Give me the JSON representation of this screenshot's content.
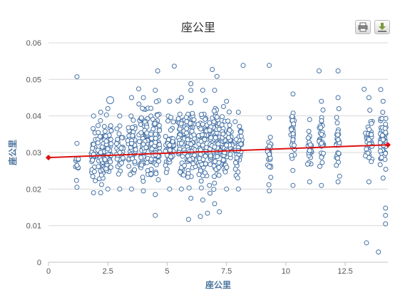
{
  "toolbar": {
    "print_icon": "printer-icon",
    "export_icon": "download-icon"
  },
  "colors": {
    "points": "#4572a7",
    "trend": "#dd1111",
    "grid": "#d8d8d8",
    "axis_label": "#4d759e",
    "text": "#333333"
  },
  "chart_data": {
    "type": "scatter",
    "title": "座公里",
    "xlabel": "座公里",
    "ylabel": "座公里",
    "xlim": [
      0,
      14.3
    ],
    "ylim": [
      0,
      0.06
    ],
    "xticks": [
      "0",
      "2.5",
      "5",
      "7.5",
      "10",
      "12.5"
    ],
    "xtick_values": [
      0,
      2.5,
      5,
      7.5,
      10,
      12.5
    ],
    "yticks": [
      "0",
      "0.01",
      "0.02",
      "0.03",
      "0.04",
      "0.05",
      "0.06"
    ],
    "ytick_values": [
      0,
      0.01,
      0.02,
      0.03,
      0.04,
      0.05,
      0.06
    ],
    "grid": true,
    "legend": "none",
    "clusters": [
      {
        "x": 1.2,
        "y_min": 0.0205,
        "y_max": 0.0325,
        "n": 10,
        "width": 0.12
      },
      {
        "x": 1.9,
        "y_min": 0.019,
        "y_max": 0.04,
        "n": 30,
        "width": 0.2
      },
      {
        "x": 2.2,
        "y_min": 0.019,
        "y_max": 0.041,
        "n": 40,
        "width": 0.25
      },
      {
        "x": 2.5,
        "y_min": 0.02,
        "y_max": 0.042,
        "n": 55,
        "width": 0.3
      },
      {
        "x": 3.0,
        "y_min": 0.02,
        "y_max": 0.04,
        "n": 40,
        "width": 0.3
      },
      {
        "x": 3.5,
        "y_min": 0.02,
        "y_max": 0.045,
        "n": 60,
        "width": 0.35
      },
      {
        "x": 4.0,
        "y_min": 0.0195,
        "y_max": 0.045,
        "n": 70,
        "width": 0.4
      },
      {
        "x": 4.5,
        "y_min": 0.0185,
        "y_max": 0.047,
        "n": 80,
        "width": 0.4
      },
      {
        "x": 5.1,
        "y_min": 0.02,
        "y_max": 0.044,
        "n": 50,
        "width": 0.35
      },
      {
        "x": 5.6,
        "y_min": 0.02,
        "y_max": 0.045,
        "n": 55,
        "width": 0.3
      },
      {
        "x": 6.0,
        "y_min": 0.0175,
        "y_max": 0.047,
        "n": 70,
        "width": 0.4
      },
      {
        "x": 6.5,
        "y_min": 0.017,
        "y_max": 0.047,
        "n": 75,
        "width": 0.4
      },
      {
        "x": 7.0,
        "y_min": 0.016,
        "y_max": 0.047,
        "n": 85,
        "width": 0.45
      },
      {
        "x": 7.5,
        "y_min": 0.02,
        "y_max": 0.044,
        "n": 70,
        "width": 0.4
      },
      {
        "x": 8.0,
        "y_min": 0.02,
        "y_max": 0.041,
        "n": 45,
        "width": 0.3
      },
      {
        "x": 9.3,
        "y_min": 0.0195,
        "y_max": 0.0395,
        "n": 25,
        "width": 0.15
      },
      {
        "x": 10.3,
        "y_min": 0.021,
        "y_max": 0.046,
        "n": 30,
        "width": 0.18
      },
      {
        "x": 11.0,
        "y_min": 0.022,
        "y_max": 0.039,
        "n": 25,
        "width": 0.18
      },
      {
        "x": 11.5,
        "y_min": 0.021,
        "y_max": 0.044,
        "n": 30,
        "width": 0.2
      },
      {
        "x": 12.2,
        "y_min": 0.022,
        "y_max": 0.045,
        "n": 25,
        "width": 0.15
      },
      {
        "x": 13.5,
        "y_min": 0.022,
        "y_max": 0.045,
        "n": 40,
        "width": 0.3
      },
      {
        "x": 14.1,
        "y_min": 0.023,
        "y_max": 0.044,
        "n": 50,
        "width": 0.25
      }
    ],
    "outliers": [
      {
        "x": 1.2,
        "y": 0.0507
      },
      {
        "x": 2.6,
        "y": 0.0443
      },
      {
        "x": 3.8,
        "y": 0.0474
      },
      {
        "x": 4.6,
        "y": 0.0523
      },
      {
        "x": 5.3,
        "y": 0.0536
      },
      {
        "x": 6.0,
        "y": 0.0488
      },
      {
        "x": 6.9,
        "y": 0.0527
      },
      {
        "x": 7.1,
        "y": 0.0508
      },
      {
        "x": 8.2,
        "y": 0.0538
      },
      {
        "x": 9.3,
        "y": 0.0538
      },
      {
        "x": 11.4,
        "y": 0.0523
      },
      {
        "x": 12.2,
        "y": 0.0523
      },
      {
        "x": 13.3,
        "y": 0.0473
      },
      {
        "x": 14.0,
        "y": 0.0472
      },
      {
        "x": 4.5,
        "y": 0.0128
      },
      {
        "x": 5.9,
        "y": 0.0117
      },
      {
        "x": 6.4,
        "y": 0.0125
      },
      {
        "x": 6.7,
        "y": 0.0134
      },
      {
        "x": 7.2,
        "y": 0.0138
      },
      {
        "x": 13.4,
        "y": 0.0053
      },
      {
        "x": 13.9,
        "y": 0.0028
      },
      {
        "x": 14.2,
        "y": 0.0148
      },
      {
        "x": 14.2,
        "y": 0.0128
      },
      {
        "x": 14.2,
        "y": 0.0105
      }
    ],
    "trendline": {
      "x": [
        0,
        14.3
      ],
      "y": [
        0.0286,
        0.0321
      ]
    }
  }
}
